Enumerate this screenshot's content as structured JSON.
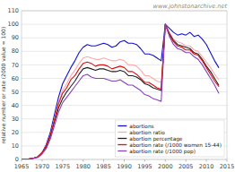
{
  "chart_data": {
    "type": "line",
    "title": "www.johnstonarchive.net",
    "ylabel": "relative number or rate (2000 value = 100)",
    "x": [
      1965,
      1966,
      1967,
      1968,
      1969,
      1970,
      1971,
      1972,
      1973,
      1974,
      1975,
      1976,
      1977,
      1978,
      1979,
      1980,
      1981,
      1982,
      1983,
      1984,
      1985,
      1986,
      1987,
      1988,
      1989,
      1990,
      1991,
      1992,
      1993,
      1994,
      1995,
      1996,
      1997,
      1998,
      1999,
      2000,
      2001,
      2002,
      2003,
      2004,
      2005,
      2006,
      2007,
      2008,
      2009,
      2010,
      2011,
      2012,
      2013
    ],
    "series": [
      {
        "name": "abortions",
        "color": "#1111cc",
        "values": [
          0,
          0,
          0.5,
          1,
          2,
          5,
          11,
          20,
          33,
          46,
          56,
          62,
          68,
          73,
          79,
          83,
          85,
          84,
          84,
          85,
          86,
          85,
          83,
          84,
          87,
          88,
          86,
          86,
          85,
          82,
          78,
          78,
          77,
          75,
          73,
          100,
          97,
          94,
          92,
          93,
          92,
          94,
          91,
          92,
          89,
          85,
          79,
          73,
          68
        ]
      },
      {
        "name": "abortion ratio",
        "color": "#ffaaaa",
        "values": [
          0,
          0,
          0.5,
          1,
          2,
          5,
          10,
          18,
          30,
          42,
          51,
          56,
          62,
          66,
          71,
          75,
          76,
          75,
          74,
          74,
          75,
          74,
          73,
          73,
          74,
          73,
          70,
          70,
          69,
          66,
          62,
          62,
          60,
          58,
          57,
          100,
          94,
          89,
          87,
          86,
          84,
          84,
          81,
          80,
          76,
          72,
          68,
          63,
          59
        ]
      },
      {
        "name": "abortion percentage",
        "color": "#222222",
        "values": [
          0,
          0,
          0.5,
          1,
          2,
          5,
          9,
          17,
          28,
          38,
          45,
          50,
          54,
          58,
          63,
          67,
          68,
          67,
          66,
          67,
          67,
          66,
          65,
          65,
          66,
          65,
          62,
          62,
          61,
          59,
          56,
          55,
          53,
          52,
          51,
          100,
          93,
          88,
          85,
          84,
          83,
          82,
          79,
          78,
          74,
          69,
          65,
          60,
          55
        ]
      },
      {
        "name": "abortion rate (/1000 women 15-44)",
        "color": "#dd1111",
        "values": [
          0,
          0,
          0.5,
          1,
          2,
          5,
          10,
          18,
          29,
          41,
          49,
          53,
          59,
          62,
          67,
          71,
          72,
          71,
          69,
          70,
          70,
          69,
          67,
          68,
          69,
          68,
          65,
          65,
          63,
          60,
          57,
          57,
          55,
          53,
          52,
          100,
          92,
          87,
          84,
          83,
          81,
          81,
          78,
          77,
          73,
          68,
          63,
          58,
          54
        ]
      },
      {
        "name": "abortion rate (/1000 pop)",
        "color": "#8844bb",
        "values": [
          0,
          0,
          0.3,
          0.8,
          1.5,
          4,
          8,
          15,
          25,
          35,
          42,
          46,
          50,
          54,
          58,
          62,
          63,
          61,
          60,
          60,
          60,
          59,
          58,
          58,
          59,
          57,
          55,
          55,
          53,
          51,
          48,
          47,
          45,
          44,
          43,
          100,
          91,
          85,
          82,
          81,
          79,
          79,
          76,
          74,
          70,
          65,
          60,
          55,
          49
        ]
      }
    ],
    "xlim": [
      1965,
      2015
    ],
    "ylim": [
      0,
      110
    ],
    "xticks": [
      1965,
      1970,
      1975,
      1980,
      1985,
      1990,
      1995,
      2000,
      2005,
      2010,
      2015
    ],
    "yticks": [
      0,
      10,
      20,
      30,
      40,
      50,
      60,
      70,
      80,
      90,
      100,
      110
    ],
    "grid": true,
    "legend": "lower right"
  }
}
